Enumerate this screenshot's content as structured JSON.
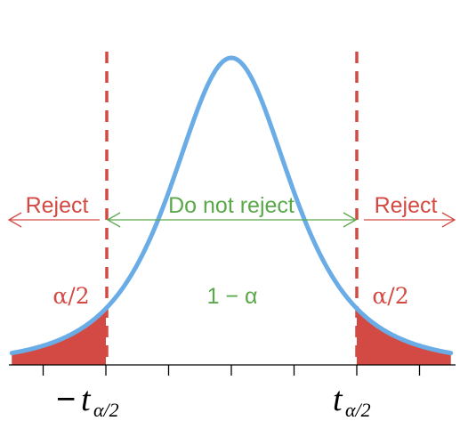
{
  "labels": {
    "reject_left": "Reject",
    "do_not_reject": "Do not reject",
    "reject_right": "Reject",
    "alpha_half_left": "α/2",
    "one_minus_alpha": "1 − α",
    "alpha_half_right": "α/2"
  },
  "axis_labels": {
    "minus_sign": "−",
    "t": "t",
    "subscript": "α/2"
  },
  "colors": {
    "curve": "#6aace6",
    "reject": "#d24a43",
    "accept": "#5aa84a",
    "axis": "#000000"
  },
  "distribution": {
    "type": "t-distribution",
    "critical_value": 2,
    "x_range": [
      -3.5,
      3.5
    ],
    "ticks": [
      -3,
      -2,
      -1,
      0,
      1,
      2,
      3
    ]
  }
}
